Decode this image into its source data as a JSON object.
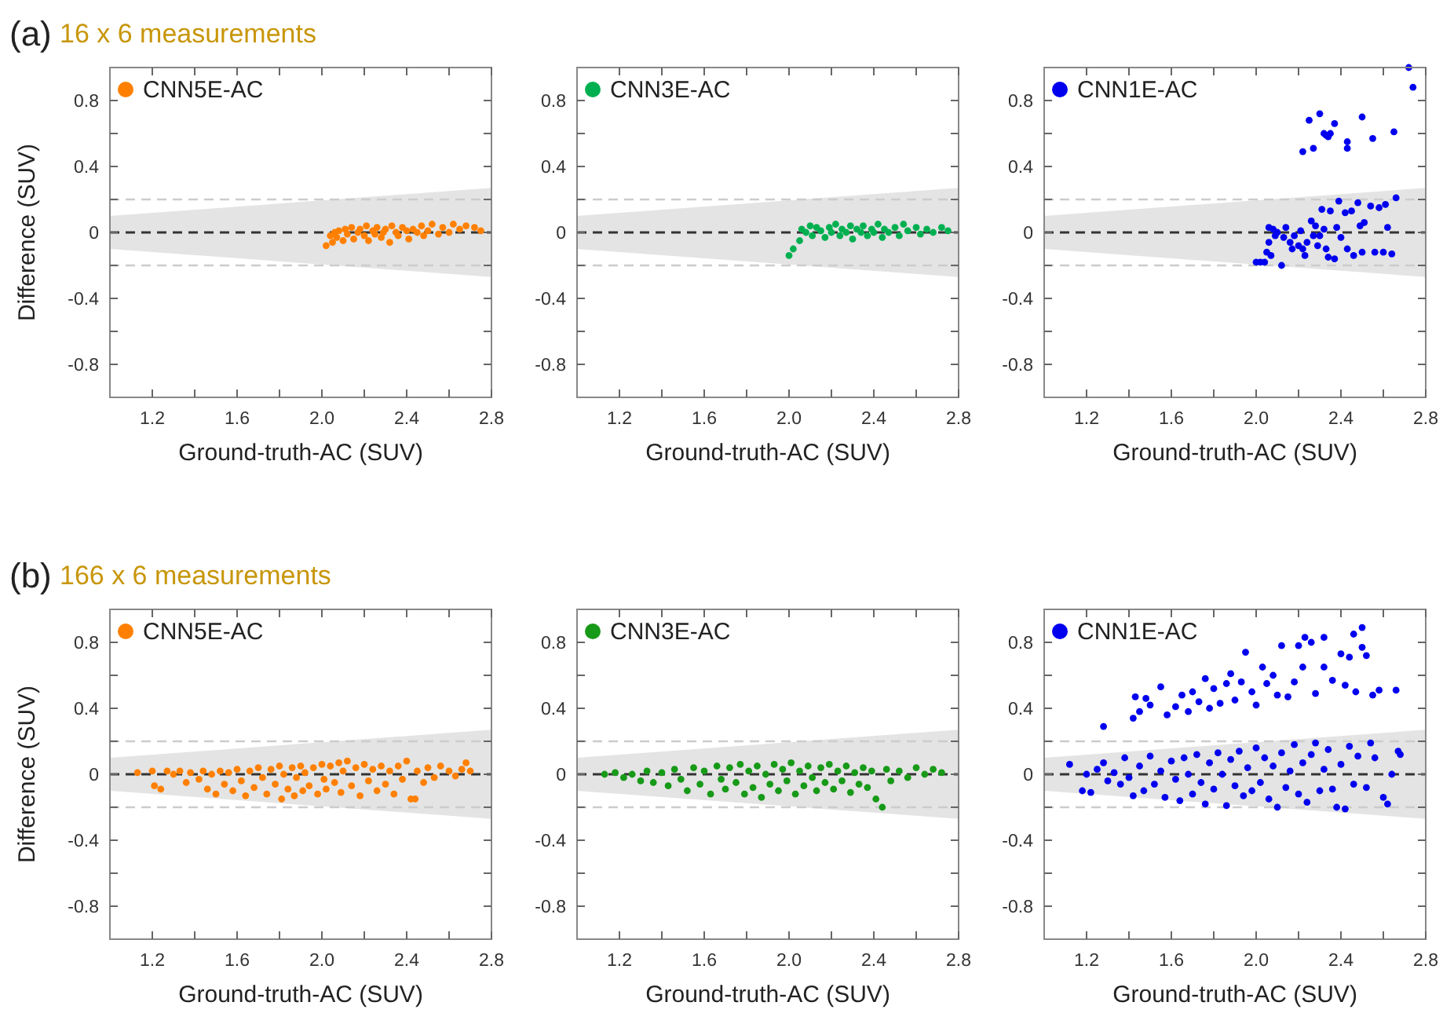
{
  "chart_data": [
    {
      "type": "scatter",
      "title": "16 x 6 measurements",
      "annotations": [
        "(a)"
      ],
      "xlabel": "Ground-truth-AC (SUV)",
      "ylabel": "Difference (SUV)",
      "xlim": [
        1.0,
        2.8
      ],
      "ylim": [
        -1,
        1
      ],
      "xticks": [
        1.2,
        {
          "value": 1.4,
          "label": null
        },
        1.6,
        {
          "value": 1.8,
          "label": null
        },
        {
          "value": 2.0,
          "label": "2.0"
        },
        {
          "value": 2.2,
          "label": null
        },
        2.4,
        {
          "value": 2.6,
          "label": null
        },
        2.8
      ],
      "yticks": [
        -0.8,
        {
          "value": -0.6,
          "label": null
        },
        -0.4,
        {
          "value": -0.2,
          "label": null
        },
        0,
        {
          "value": 0.2,
          "label": null
        },
        0.4,
        {
          "value": 0.6,
          "label": null
        },
        0.8
      ],
      "legend": "top left",
      "marker": "circle",
      "grid": false,
      "ref_lines": [
        {
          "axis": "y",
          "value": 0.2,
          "color": "#cccccc",
          "line_style": "dashed"
        },
        {
          "axis": "y",
          "value": -0.2,
          "color": "#cccccc",
          "line_style": "dashed"
        }
      ],
      "series": [
        {
          "type": "line",
          "color": "#333333",
          "line_style": "dashed",
          "marker": "none",
          "x": [
            1.0,
            2.8
          ],
          "values": [
            0,
            0
          ],
          "lower": [
            -0.1,
            -0.27
          ],
          "upper": [
            0.1,
            0.27
          ]
        },
        {
          "type": "scatter",
          "name": "CNN5E-AC",
          "color": "#ff8000",
          "x": [
            2.02,
            2.04,
            2.05,
            2.06,
            2.07,
            2.08,
            2.1,
            2.11,
            2.12,
            2.14,
            2.15,
            2.17,
            2.18,
            2.2,
            2.21,
            2.22,
            2.24,
            2.25,
            2.26,
            2.28,
            2.29,
            2.3,
            2.32,
            2.33,
            2.35,
            2.36,
            2.38,
            2.4,
            2.41,
            2.43,
            2.45,
            2.47,
            2.48,
            2.5,
            2.52,
            2.55,
            2.57,
            2.6,
            2.62,
            2.65,
            2.68,
            2.72,
            2.75
          ],
          "values": [
            -0.08,
            -0.02,
            -0.06,
            0.0,
            -0.03,
            0.01,
            -0.05,
            0.02,
            -0.01,
            0.03,
            -0.04,
            0.0,
            0.02,
            -0.02,
            0.04,
            -0.05,
            0.01,
            -0.01,
            0.03,
            -0.03,
            0.0,
            0.02,
            -0.06,
            0.04,
            0.0,
            -0.02,
            0.03,
            0.01,
            -0.04,
            0.02,
            0.0,
            0.04,
            -0.02,
            0.01,
            0.05,
            -0.01,
            0.03,
            0.0,
            0.05,
            0.02,
            0.04,
            0.03,
            0.01
          ]
        }
      ]
    },
    {
      "type": "scatter",
      "xlabel": "Ground-truth-AC (SUV)",
      "xlim": [
        1.0,
        2.8
      ],
      "ylim": [
        -1,
        1
      ],
      "xticks": [
        1.2,
        {
          "value": 1.4,
          "label": null
        },
        1.6,
        {
          "value": 1.8,
          "label": null
        },
        {
          "value": 2.0,
          "label": "2.0"
        },
        {
          "value": 2.2,
          "label": null
        },
        2.4,
        {
          "value": 2.6,
          "label": null
        },
        2.8
      ],
      "yticks": [
        -0.8,
        {
          "value": -0.6,
          "label": null
        },
        -0.4,
        {
          "value": -0.2,
          "label": null
        },
        0,
        {
          "value": 0.2,
          "label": null
        },
        0.4,
        {
          "value": 0.6,
          "label": null
        },
        0.8
      ],
      "legend": "top left",
      "marker": "circle",
      "grid": false,
      "ref_lines": [
        {
          "axis": "y",
          "value": 0.2,
          "color": "#cccccc",
          "line_style": "dashed"
        },
        {
          "axis": "y",
          "value": -0.2,
          "color": "#cccccc",
          "line_style": "dashed"
        }
      ],
      "series": [
        {
          "type": "line",
          "color": "#333333",
          "line_style": "dashed",
          "marker": "none",
          "x": [
            1.0,
            2.8
          ],
          "values": [
            0,
            0
          ],
          "lower": [
            -0.1,
            -0.27
          ],
          "upper": [
            0.1,
            0.27
          ]
        },
        {
          "type": "scatter",
          "name": "CNN3E-AC",
          "color": "#00b050",
          "x": [
            2.0,
            2.02,
            2.05,
            2.06,
            2.08,
            2.1,
            2.11,
            2.13,
            2.15,
            2.17,
            2.19,
            2.2,
            2.22,
            2.24,
            2.25,
            2.27,
            2.29,
            2.3,
            2.32,
            2.34,
            2.35,
            2.37,
            2.39,
            2.4,
            2.42,
            2.44,
            2.45,
            2.47,
            2.5,
            2.52,
            2.54,
            2.56,
            2.6,
            2.62,
            2.65,
            2.68,
            2.72,
            2.75
          ],
          "values": [
            -0.14,
            -0.1,
            -0.05,
            0.02,
            0.0,
            0.04,
            -0.02,
            0.03,
            0.01,
            -0.03,
            0.03,
            0.0,
            0.05,
            -0.02,
            0.02,
            0.0,
            0.04,
            -0.04,
            0.02,
            0.0,
            0.04,
            -0.02,
            0.02,
            0.0,
            0.05,
            -0.03,
            0.02,
            0.0,
            0.03,
            -0.02,
            0.05,
            0.01,
            0.03,
            -0.01,
            0.02,
            0.0,
            0.03,
            0.01
          ]
        }
      ]
    },
    {
      "type": "scatter",
      "xlabel": "Ground-truth-AC (SUV)",
      "xlim": [
        1.0,
        2.8
      ],
      "ylim": [
        -1,
        1
      ],
      "xticks": [
        1.2,
        {
          "value": 1.4,
          "label": null
        },
        1.6,
        {
          "value": 1.8,
          "label": null
        },
        {
          "value": 2.0,
          "label": "2.0"
        },
        {
          "value": 2.2,
          "label": null
        },
        2.4,
        {
          "value": 2.6,
          "label": null
        },
        2.8
      ],
      "yticks": [
        -0.8,
        {
          "value": -0.6,
          "label": null
        },
        -0.4,
        {
          "value": -0.2,
          "label": null
        },
        0,
        {
          "value": 0.2,
          "label": null
        },
        0.4,
        {
          "value": 0.6,
          "label": null
        },
        0.8
      ],
      "legend": "top left",
      "marker": "circle",
      "grid": false,
      "ref_lines": [
        {
          "axis": "y",
          "value": 0.2,
          "color": "#cccccc",
          "line_style": "dashed"
        },
        {
          "axis": "y",
          "value": -0.2,
          "color": "#cccccc",
          "line_style": "dashed"
        }
      ],
      "series": [
        {
          "type": "line",
          "color": "#333333",
          "line_style": "dashed",
          "marker": "none",
          "x": [
            1.0,
            2.8
          ],
          "values": [
            0,
            0
          ],
          "lower": [
            -0.1,
            -0.27
          ],
          "upper": [
            0.1,
            0.27
          ]
        },
        {
          "type": "scatter",
          "name": "CNN1E-AC",
          "color": "#0000ee",
          "x": [
            2.0,
            2.02,
            2.04,
            2.05,
            2.06,
            2.06,
            2.07,
            2.08,
            2.09,
            2.1,
            2.12,
            2.13,
            2.14,
            2.16,
            2.17,
            2.18,
            2.2,
            2.21,
            2.22,
            2.23,
            2.24,
            2.26,
            2.27,
            2.28,
            2.29,
            2.3,
            2.31,
            2.32,
            2.33,
            2.34,
            2.35,
            2.37,
            2.38,
            2.39,
            2.4,
            2.42,
            2.43,
            2.45,
            2.46,
            2.48,
            2.49,
            2.5,
            2.51,
            2.54,
            2.56,
            2.58,
            2.6,
            2.61,
            2.62,
            2.64,
            2.66,
            2.22,
            2.25,
            2.27,
            2.3,
            2.32,
            2.33,
            2.34,
            2.35,
            2.37,
            2.43,
            2.43,
            2.5,
            2.55,
            2.65,
            2.72,
            2.74
          ],
          "values": [
            -0.18,
            -0.18,
            -0.18,
            -0.12,
            -0.06,
            0.03,
            -0.14,
            0.02,
            -0.02,
            0.0,
            -0.2,
            -0.03,
            0.03,
            -0.06,
            -0.1,
            -0.02,
            -0.08,
            0.01,
            -0.1,
            -0.14,
            -0.06,
            0.07,
            -0.02,
            0.04,
            -0.08,
            -0.02,
            0.14,
            0.02,
            -0.1,
            -0.15,
            0.13,
            -0.16,
            0.03,
            0.19,
            -0.03,
            0.12,
            -0.1,
            0.13,
            -0.14,
            0.18,
            0.04,
            -0.12,
            0.06,
            0.16,
            -0.12,
            0.15,
            -0.12,
            0.17,
            0.03,
            -0.13,
            0.21,
            0.49,
            0.68,
            0.51,
            0.72,
            0.6,
            0.59,
            0.58,
            0.6,
            0.66,
            0.55,
            0.51,
            0.7,
            0.57,
            0.61,
            1.0,
            0.88
          ]
        }
      ]
    },
    {
      "type": "scatter",
      "title": "166 x 6 measurements",
      "annotations": [
        "(b)"
      ],
      "xlabel": "Ground-truth-AC (SUV)",
      "ylabel": "Difference (SUV)",
      "xlim": [
        1.0,
        2.8
      ],
      "ylim": [
        -1,
        1
      ],
      "xticks": [
        1.2,
        {
          "value": 1.4,
          "label": null
        },
        1.6,
        {
          "value": 1.8,
          "label": null
        },
        {
          "value": 2.0,
          "label": "2.0"
        },
        {
          "value": 2.2,
          "label": null
        },
        2.4,
        {
          "value": 2.6,
          "label": null
        },
        2.8
      ],
      "yticks": [
        -0.8,
        {
          "value": -0.6,
          "label": null
        },
        -0.4,
        {
          "value": -0.2,
          "label": null
        },
        0,
        {
          "value": 0.2,
          "label": null
        },
        0.4,
        {
          "value": 0.6,
          "label": null
        },
        0.8
      ],
      "legend": "top left",
      "marker": "circle",
      "grid": false,
      "ref_lines": [
        {
          "axis": "y",
          "value": 0.2,
          "color": "#cccccc",
          "line_style": "dashed"
        },
        {
          "axis": "y",
          "value": -0.2,
          "color": "#cccccc",
          "line_style": "dashed"
        }
      ],
      "series": [
        {
          "type": "line",
          "color": "#333333",
          "line_style": "dashed",
          "marker": "none",
          "x": [
            1.0,
            2.8
          ],
          "values": [
            0,
            0
          ],
          "lower": [
            -0.1,
            -0.27
          ],
          "upper": [
            0.1,
            0.27
          ]
        },
        {
          "type": "scatter",
          "name": "CNN5E-AC",
          "color": "#ff8000",
          "x": [
            1.13,
            1.2,
            1.21,
            1.24,
            1.27,
            1.3,
            1.33,
            1.36,
            1.38,
            1.42,
            1.44,
            1.46,
            1.48,
            1.5,
            1.52,
            1.54,
            1.56,
            1.58,
            1.6,
            1.62,
            1.64,
            1.66,
            1.68,
            1.7,
            1.72,
            1.74,
            1.76,
            1.78,
            1.8,
            1.81,
            1.82,
            1.84,
            1.86,
            1.87,
            1.88,
            1.9,
            1.91,
            1.92,
            1.94,
            1.96,
            1.98,
            2.0,
            2.01,
            2.02,
            2.04,
            2.06,
            2.08,
            2.09,
            2.1,
            2.12,
            2.14,
            2.16,
            2.18,
            2.2,
            2.22,
            2.24,
            2.26,
            2.28,
            2.3,
            2.32,
            2.34,
            2.36,
            2.38,
            2.4,
            2.42,
            2.44,
            2.45,
            2.48,
            2.5,
            2.53,
            2.56,
            2.6,
            2.63,
            2.66,
            2.68,
            2.7
          ],
          "values": [
            0.01,
            0.02,
            -0.07,
            -0.09,
            0.02,
            0.0,
            0.02,
            -0.05,
            0.01,
            -0.03,
            0.02,
            -0.09,
            0.0,
            -0.12,
            0.02,
            -0.06,
            0.01,
            -0.1,
            0.03,
            -0.04,
            -0.13,
            0.02,
            -0.08,
            0.04,
            -0.02,
            -0.12,
            0.03,
            -0.06,
            0.05,
            -0.15,
            0.0,
            -0.09,
            0.04,
            -0.13,
            -0.02,
            0.05,
            -0.1,
            0.01,
            -0.07,
            0.04,
            -0.12,
            0.06,
            -0.03,
            -0.09,
            0.05,
            -0.05,
            0.07,
            -0.11,
            0.02,
            0.08,
            -0.07,
            0.04,
            -0.13,
            0.06,
            -0.04,
            0.03,
            -0.1,
            0.05,
            -0.06,
            0.02,
            -0.12,
            0.05,
            -0.03,
            0.08,
            -0.15,
            -0.15,
            0.02,
            -0.05,
            0.04,
            -0.02,
            0.05,
            0.02,
            -0.01,
            0.03,
            0.07,
            0.02
          ]
        }
      ]
    },
    {
      "type": "scatter",
      "xlabel": "Ground-truth-AC (SUV)",
      "xlim": [
        1.0,
        2.8
      ],
      "ylim": [
        -1,
        1
      ],
      "xticks": [
        1.2,
        {
          "value": 1.4,
          "label": null
        },
        1.6,
        {
          "value": 1.8,
          "label": null
        },
        {
          "value": 2.0,
          "label": "2.0"
        },
        {
          "value": 2.2,
          "label": null
        },
        2.4,
        {
          "value": 2.6,
          "label": null
        },
        2.8
      ],
      "yticks": [
        -0.8,
        {
          "value": -0.6,
          "label": null
        },
        -0.4,
        {
          "value": -0.2,
          "label": null
        },
        0,
        {
          "value": 0.2,
          "label": null
        },
        0.4,
        {
          "value": 0.6,
          "label": null
        },
        0.8
      ],
      "legend": "top left",
      "marker": "circle",
      "grid": false,
      "ref_lines": [
        {
          "axis": "y",
          "value": 0.2,
          "color": "#cccccc",
          "line_style": "dashed"
        },
        {
          "axis": "y",
          "value": -0.2,
          "color": "#cccccc",
          "line_style": "dashed"
        }
      ],
      "series": [
        {
          "type": "line",
          "color": "#333333",
          "line_style": "dashed",
          "marker": "none",
          "x": [
            1.0,
            2.8
          ],
          "values": [
            0,
            0
          ],
          "lower": [
            -0.1,
            -0.27
          ],
          "upper": [
            0.1,
            0.27
          ]
        },
        {
          "type": "scatter",
          "name": "CNN3E-AC",
          "color": "#179a17",
          "x": [
            1.13,
            1.18,
            1.22,
            1.26,
            1.3,
            1.33,
            1.36,
            1.4,
            1.43,
            1.46,
            1.49,
            1.52,
            1.55,
            1.58,
            1.6,
            1.63,
            1.66,
            1.68,
            1.7,
            1.72,
            1.75,
            1.77,
            1.79,
            1.81,
            1.83,
            1.85,
            1.87,
            1.89,
            1.91,
            1.93,
            1.95,
            1.97,
            1.99,
            2.01,
            2.03,
            2.05,
            2.07,
            2.09,
            2.11,
            2.13,
            2.15,
            2.17,
            2.19,
            2.21,
            2.23,
            2.25,
            2.27,
            2.29,
            2.31,
            2.33,
            2.35,
            2.37,
            2.39,
            2.41,
            2.44,
            2.46,
            2.48,
            2.52,
            2.56,
            2.6,
            2.64,
            2.68,
            2.72
          ],
          "values": [
            0.0,
            0.01,
            -0.02,
            0.0,
            -0.04,
            0.02,
            -0.05,
            0.01,
            -0.07,
            0.03,
            -0.03,
            -0.1,
            0.04,
            -0.06,
            0.02,
            -0.12,
            0.05,
            -0.03,
            -0.09,
            0.04,
            -0.05,
            0.06,
            -0.12,
            0.02,
            -0.08,
            0.05,
            -0.14,
            0.0,
            -0.06,
            0.06,
            -0.1,
            0.03,
            -0.04,
            0.07,
            -0.12,
            0.02,
            -0.07,
            0.05,
            -0.02,
            -0.1,
            0.04,
            -0.05,
            0.06,
            -0.09,
            0.02,
            -0.04,
            0.05,
            -0.11,
            0.01,
            -0.06,
            0.04,
            -0.08,
            0.02,
            -0.15,
            -0.2,
            0.03,
            -0.04,
            0.02,
            -0.02,
            0.04,
            0.0,
            0.03,
            0.01
          ]
        }
      ]
    },
    {
      "type": "scatter",
      "xlabel": "Ground-truth-AC (SUV)",
      "xlim": [
        1.0,
        2.8
      ],
      "ylim": [
        -1,
        1
      ],
      "xticks": [
        1.2,
        {
          "value": 1.4,
          "label": null
        },
        1.6,
        {
          "value": 1.8,
          "label": null
        },
        {
          "value": 2.0,
          "label": "2.0"
        },
        {
          "value": 2.2,
          "label": null
        },
        2.4,
        {
          "value": 2.6,
          "label": null
        },
        2.8
      ],
      "yticks": [
        -0.8,
        {
          "value": -0.6,
          "label": null
        },
        -0.4,
        {
          "value": -0.2,
          "label": null
        },
        0,
        {
          "value": 0.2,
          "label": null
        },
        0.4,
        {
          "value": 0.6,
          "label": null
        },
        0.8
      ],
      "legend": "top left",
      "marker": "circle",
      "grid": false,
      "ref_lines": [
        {
          "axis": "y",
          "value": 0.2,
          "color": "#cccccc",
          "line_style": "dashed"
        },
        {
          "axis": "y",
          "value": -0.2,
          "color": "#cccccc",
          "line_style": "dashed"
        }
      ],
      "series": [
        {
          "type": "line",
          "color": "#333333",
          "line_style": "dashed",
          "marker": "none",
          "x": [
            1.0,
            2.8
          ],
          "values": [
            0,
            0
          ],
          "lower": [
            -0.1,
            -0.27
          ],
          "upper": [
            0.1,
            0.27
          ]
        },
        {
          "type": "scatter",
          "name": "CNN1E-AC",
          "color": "#0000ee",
          "x": [
            1.12,
            1.18,
            1.2,
            1.22,
            1.25,
            1.28,
            1.3,
            1.33,
            1.36,
            1.38,
            1.4,
            1.42,
            1.45,
            1.47,
            1.5,
            1.52,
            1.55,
            1.57,
            1.6,
            1.62,
            1.64,
            1.66,
            1.68,
            1.7,
            1.72,
            1.74,
            1.76,
            1.78,
            1.8,
            1.82,
            1.84,
            1.86,
            1.88,
            1.9,
            1.92,
            1.94,
            1.96,
            1.98,
            2.0,
            2.02,
            2.04,
            2.06,
            2.08,
            2.1,
            2.12,
            2.14,
            2.16,
            2.18,
            2.2,
            2.22,
            2.24,
            2.26,
            2.28,
            2.3,
            2.32,
            2.34,
            2.36,
            2.38,
            2.4,
            2.42,
            2.44,
            2.46,
            2.48,
            2.52,
            2.54,
            2.56,
            2.6,
            2.62,
            2.64,
            2.67,
            2.68,
            1.28,
            1.42,
            1.43,
            1.45,
            1.48,
            1.5,
            1.55,
            1.58,
            1.62,
            1.65,
            1.68,
            1.7,
            1.73,
            1.76,
            1.78,
            1.8,
            1.83,
            1.86,
            1.88,
            1.9,
            1.93,
            1.95,
            1.98,
            2.0,
            2.03,
            2.05,
            2.08,
            2.1,
            2.12,
            2.15,
            2.18,
            2.2,
            2.22,
            2.23,
            2.26,
            2.28,
            2.32,
            2.32,
            2.36,
            2.4,
            2.42,
            2.44,
            2.46,
            2.47,
            2.5,
            2.5,
            2.52,
            2.55,
            2.58,
            2.66
          ],
          "values": [
            0.06,
            -0.1,
            0.0,
            -0.11,
            0.03,
            0.07,
            -0.04,
            0.01,
            -0.06,
            0.1,
            -0.02,
            -0.13,
            0.05,
            -0.1,
            0.11,
            -0.06,
            0.02,
            -0.14,
            0.08,
            -0.03,
            -0.16,
            0.1,
            0.0,
            -0.12,
            0.12,
            -0.05,
            -0.18,
            0.07,
            -0.09,
            0.13,
            0.0,
            -0.19,
            0.09,
            -0.07,
            0.14,
            -0.13,
            0.04,
            -0.1,
            0.16,
            -0.05,
            0.1,
            -0.15,
            0.05,
            -0.2,
            0.13,
            -0.08,
            0.02,
            0.18,
            -0.12,
            0.07,
            -0.17,
            0.12,
            0.19,
            -0.1,
            0.03,
            0.15,
            -0.09,
            -0.2,
            0.06,
            -0.21,
            0.17,
            -0.06,
            0.11,
            -0.08,
            0.19,
            0.1,
            -0.14,
            -0.18,
            0.0,
            0.14,
            0.12,
            0.29,
            0.34,
            0.47,
            0.38,
            0.46,
            0.42,
            0.53,
            0.36,
            0.41,
            0.48,
            0.38,
            0.5,
            0.44,
            0.58,
            0.4,
            0.52,
            0.43,
            0.55,
            0.61,
            0.45,
            0.56,
            0.74,
            0.5,
            0.42,
            0.65,
            0.55,
            0.6,
            0.48,
            0.78,
            0.47,
            0.56,
            0.78,
            0.65,
            0.83,
            0.8,
            0.49,
            0.83,
            0.65,
            0.57,
            0.73,
            0.54,
            0.71,
            0.85,
            0.5,
            0.89,
            0.77,
            0.72,
            0.48,
            0.51,
            0.51
          ]
        }
      ]
    }
  ]
}
